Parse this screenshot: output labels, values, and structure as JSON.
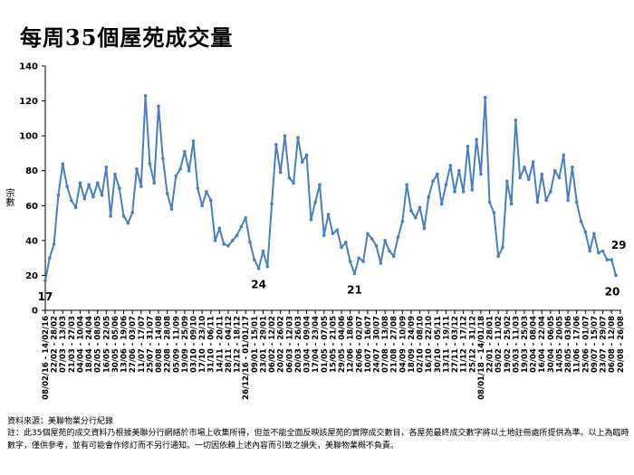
{
  "title": "每周35個屋苑成交量",
  "source": "資料來源：美聯物業分行紀錄",
  "note": "註：此35個屋苑的成交資料乃根據美聯分行網絡於市場上收集所得，但並不能全面反映該屋苑的實際成交數目，各屋苑最終成交數字將以土地註冊處所提供為準。以上為臨時數字，僅供參考，並有可能會作修訂而不另行通知。一切因依賴上述內容而引致之損失，美聯物業概不負責。",
  "chart_data": {
    "type": "line",
    "ylabel": "宗數",
    "ylim": [
      0,
      140
    ],
    "yticks": [
      0,
      20,
      40,
      60,
      80,
      100,
      120,
      140
    ],
    "color": "#4a7fc0",
    "values": [
      17,
      30,
      38,
      66,
      84,
      71,
      63,
      59,
      73,
      64,
      72,
      65,
      73,
      66,
      82,
      54,
      78,
      70,
      54,
      50,
      56,
      81,
      71,
      123,
      84,
      73,
      117,
      87,
      67,
      58,
      77,
      81,
      91,
      80,
      97,
      70,
      60,
      68,
      63,
      40,
      47,
      38,
      37,
      40,
      43,
      48,
      53,
      39,
      29,
      24,
      34,
      25,
      61,
      95,
      79,
      100,
      76,
      73,
      99,
      85,
      89,
      52,
      62,
      72,
      43,
      55,
      44,
      46,
      36,
      39,
      28,
      21,
      30,
      28,
      44,
      41,
      37,
      27,
      40,
      34,
      31,
      42,
      51,
      72,
      57,
      53,
      59,
      47,
      65,
      74,
      78,
      61,
      72,
      83,
      68,
      80,
      68,
      94,
      69,
      98,
      78,
      122,
      62,
      56,
      31,
      36,
      74,
      61,
      109,
      76,
      82,
      75,
      85,
      62,
      78,
      63,
      68,
      80,
      76,
      89,
      63,
      82,
      62,
      51,
      45,
      34,
      44,
      33,
      34,
      29,
      29,
      20
    ],
    "x_tick_labels": [
      "08/02/16 - 14/02/16",
      "22/02 - 28/02",
      "07/03 - 13/03",
      "21/03 - 27/03",
      "04/04 - 10/04",
      "18/04 - 24/04",
      "02/05 - 08/05",
      "16/05 - 22/05",
      "30/05 - 05/06",
      "13/06 - 19/06",
      "27/06 - 03/07",
      "11/07 - 17/07",
      "25/07 - 31/07",
      "08/08 - 14/08",
      "22/08 - 28/08",
      "05/09 - 11/09",
      "19/09 - 25/09",
      "03/10 - 09/10",
      "17/10 - 23/10",
      "31/10 - 06/11",
      "14/11 - 20/11",
      "28/11 - 04/12",
      "12/12 - 18/12",
      "26/12/16 - 01/01/17",
      "09/01 - 15/01",
      "23/01 - 29/01",
      "06/02 - 12/02",
      "20/02 - 26/02",
      "06/03 - 12/03",
      "20/03 - 26/03",
      "03/04 - 09/04",
      "17/04 - 23/04",
      "01/05 - 07/05",
      "15/05 - 21/05",
      "29/05 - 04/06",
      "12/06 - 18/06",
      "26/06 - 02/07",
      "10/07 - 16/07",
      "24/07 - 30/07",
      "07/08 - 13/08",
      "21/08 - 27/08",
      "04/09 - 10/09",
      "18/09 - 24/09",
      "02/10 - 08/10",
      "16/10 - 22/10",
      "30/10 - 05/11",
      "13/11 - 19/11",
      "27/11 - 03/12",
      "11/12 - 17/12",
      "25/12 - 31/12",
      "08/01/18 - 14/01/18",
      "22/01 - 28/01",
      "05/02 - 11/02",
      "19/02 - 25/02",
      "05/03 - 11/03",
      "19/03 - 25/03",
      "02/04 - 08/04",
      "16/04 - 22/04",
      "30/04 - 06/05",
      "14/05 - 20/05",
      "28/05 - 03/06",
      "11/06 - 17/06",
      "25/06 - 01/07",
      "09/07 - 15/07",
      "23/07 - 29/07",
      "06/08 - 12/08",
      "20/08 - 26/08"
    ],
    "annotations": [
      {
        "index": 0,
        "label": "17"
      },
      {
        "index": 49,
        "label": "24"
      },
      {
        "index": 71,
        "label": "21"
      },
      {
        "index": 130,
        "label": "29"
      },
      {
        "index": 131,
        "label": "20"
      }
    ]
  }
}
